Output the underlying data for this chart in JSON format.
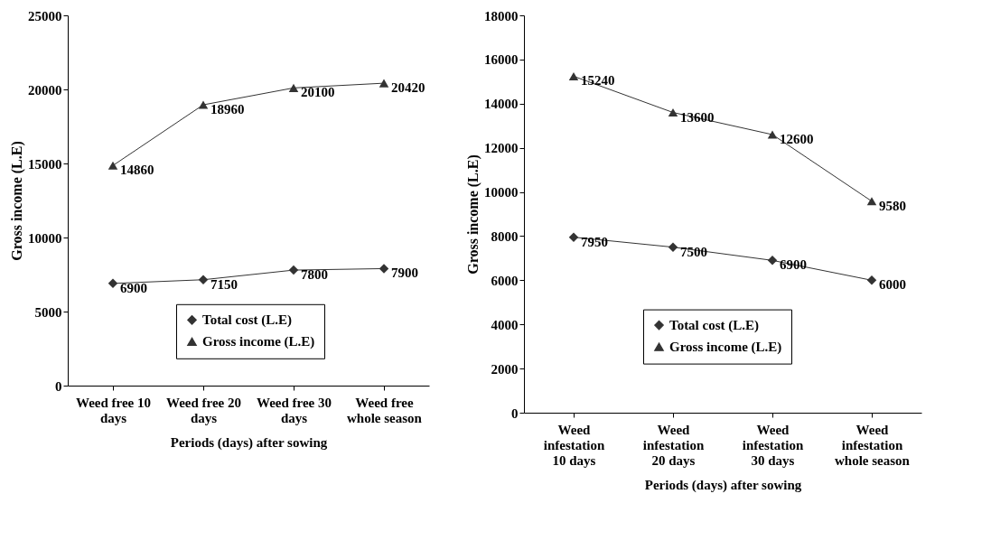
{
  "chart_data": [
    {
      "type": "line",
      "xlabel": "Periods (days) after sowing",
      "ylabel": "Gross income (L.E)",
      "categories": [
        "Weed free 10 days",
        "Weed free 20 days",
        "Weed free 30 days",
        "Weed free whole season"
      ],
      "series": [
        {
          "name": "Total cost (L.E)",
          "color": "#333333",
          "marker": "diamond",
          "values": [
            6900,
            7150,
            7800,
            7900
          ]
        },
        {
          "name": "Gross income (L.E)",
          "color": "#333333",
          "marker": "triangle",
          "values": [
            14860,
            18960,
            20100,
            20420
          ]
        }
      ],
      "ylim": [
        0,
        25000
      ],
      "yticks": [
        0,
        5000,
        10000,
        15000,
        20000,
        25000
      ],
      "grid": false,
      "legend": "bottom",
      "data_labels": true
    },
    {
      "type": "line",
      "xlabel": "Periods (days) after sowing",
      "ylabel": "Gross income (L.E)",
      "categories": [
        "Weed infestation 10 days",
        "Weed infestation 20 days",
        "Weed infestation 30 days",
        "Weed infestation whole season"
      ],
      "series": [
        {
          "name": "Total cost (L.E)",
          "color": "#333333",
          "marker": "diamond",
          "values": [
            7950,
            7500,
            6900,
            6000
          ]
        },
        {
          "name": "Gross income (L.E)",
          "color": "#333333",
          "marker": "triangle",
          "values": [
            15240,
            13600,
            12600,
            9580
          ]
        }
      ],
      "ylim": [
        0,
        18000
      ],
      "yticks": [
        0,
        2000,
        4000,
        6000,
        8000,
        10000,
        12000,
        14000,
        16000,
        18000
      ],
      "grid": false,
      "legend": "bottom",
      "data_labels": true
    }
  ]
}
